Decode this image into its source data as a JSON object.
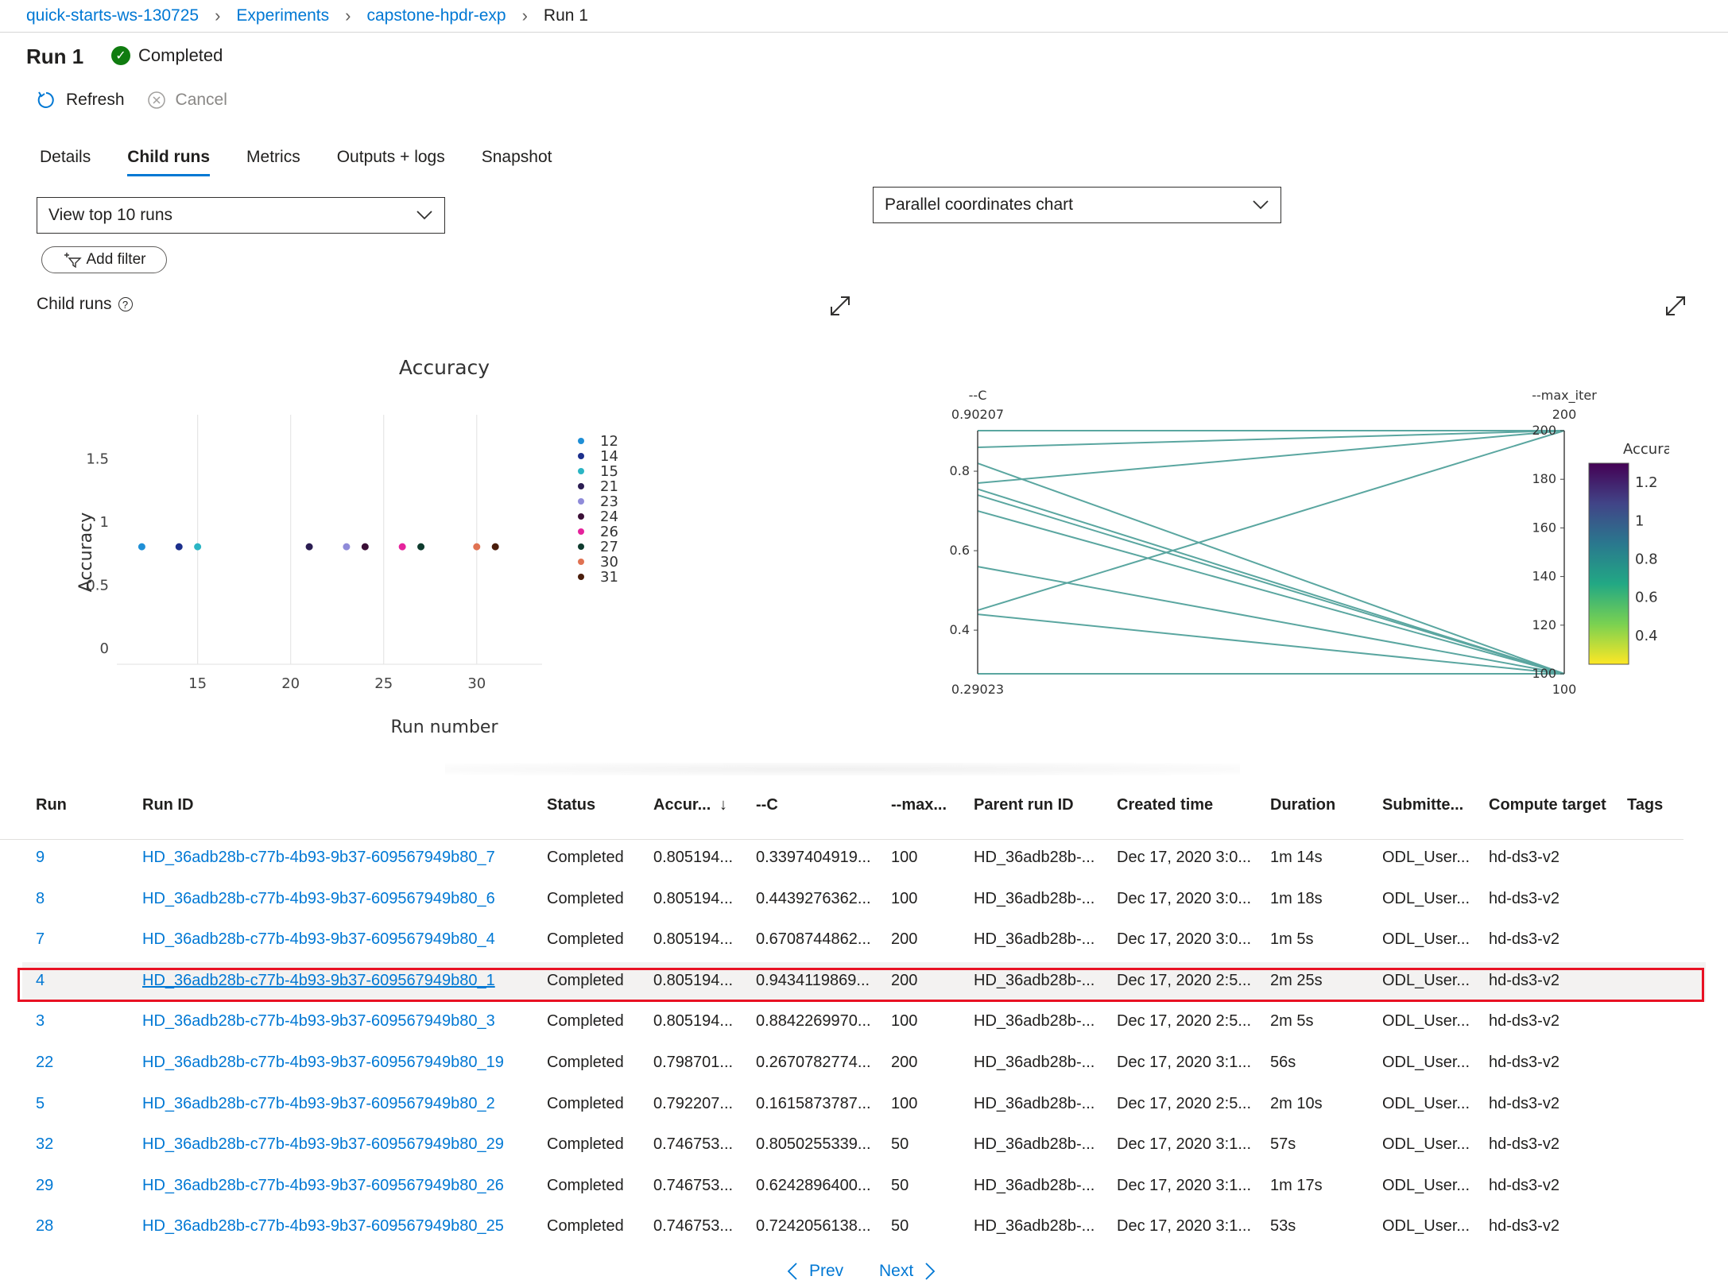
{
  "breadcrumb": {
    "items": [
      "quick-starts-ws-130725",
      "Experiments",
      "capstone-hpdr-exp",
      "Run 1"
    ]
  },
  "header": {
    "title": "Run 1",
    "status": "Completed",
    "status_color": "#107c10"
  },
  "toolbar": {
    "refresh_label": "Refresh",
    "cancel_label": "Cancel"
  },
  "tabs": [
    {
      "label": "Details",
      "active": false
    },
    {
      "label": "Child runs",
      "active": true
    },
    {
      "label": "Metrics",
      "active": false
    },
    {
      "label": "Outputs + logs",
      "active": false
    },
    {
      "label": "Snapshot",
      "active": false
    }
  ],
  "controls": {
    "view_dropdown": "View top 10 runs",
    "chart_dropdown": "Parallel coordinates chart",
    "add_filter": "Add filter",
    "child_runs_label": "Child runs",
    "help_icon": "?"
  },
  "chart_data": [
    {
      "type": "scatter",
      "title": "Accuracy",
      "xlabel": "Run number",
      "ylabel": "Accuracy",
      "xlim": [
        11,
        33
      ],
      "ylim": [
        -0.05,
        1.8
      ],
      "x_ticks": [
        "15",
        "20",
        "25",
        "30"
      ],
      "y_ticks": [
        "0",
        "0.5",
        "1",
        "1.5"
      ],
      "grid": "vertical",
      "legend": "right",
      "series": [
        {
          "name": "12",
          "x": 12,
          "y": 0.805,
          "color": "#1f8fd6"
        },
        {
          "name": "14",
          "x": 14,
          "y": 0.805,
          "color": "#1c2f8c"
        },
        {
          "name": "15",
          "x": 15,
          "y": 0.805,
          "color": "#2bb5c4"
        },
        {
          "name": "21",
          "x": 21,
          "y": 0.805,
          "color": "#2b1d52"
        },
        {
          "name": "23",
          "x": 23,
          "y": 0.805,
          "color": "#8f8bd9"
        },
        {
          "name": "24",
          "x": 24,
          "y": 0.805,
          "color": "#3a0f36"
        },
        {
          "name": "26",
          "x": 26,
          "y": 0.805,
          "color": "#e5239c"
        },
        {
          "name": "27",
          "x": 27,
          "y": 0.805,
          "color": "#0e3b2e"
        },
        {
          "name": "30",
          "x": 30,
          "y": 0.805,
          "color": "#e07252"
        },
        {
          "name": "31",
          "x": 31,
          "y": 0.805,
          "color": "#4a1e0c"
        }
      ]
    },
    {
      "type": "parallel-coordinates",
      "axes": [
        {
          "label": "--C",
          "min_label": "0.29023",
          "max_label": "0.90207",
          "ticks": [
            "0.4",
            "0.6",
            "0.8"
          ],
          "range": [
            0.29023,
            0.90207
          ]
        },
        {
          "label": "--max_iter",
          "min_label": "100",
          "max_label": "200",
          "ticks": [
            "100",
            "120",
            "140",
            "160",
            "180",
            "200"
          ],
          "range": [
            100,
            200
          ]
        }
      ],
      "lines": [
        {
          "c": 0.90207,
          "max_iter": 200
        },
        {
          "c": 0.86,
          "max_iter": 200
        },
        {
          "c": 0.77,
          "max_iter": 200
        },
        {
          "c": 0.45,
          "max_iter": 200
        },
        {
          "c": 0.82,
          "max_iter": 100
        },
        {
          "c": 0.755,
          "max_iter": 100
        },
        {
          "c": 0.74,
          "max_iter": 100
        },
        {
          "c": 0.7,
          "max_iter": 100
        },
        {
          "c": 0.56,
          "max_iter": 100
        },
        {
          "c": 0.44,
          "max_iter": 100
        },
        {
          "c": 0.29023,
          "max_iter": 100
        }
      ],
      "line_color": "#5aa6a0",
      "colorbar": {
        "title": "Accuracy",
        "ticks": [
          "0.4",
          "0.6",
          "0.8",
          "1",
          "1.2"
        ],
        "colors": [
          "#fde725",
          "#7ad151",
          "#22a884",
          "#2a788e",
          "#414487",
          "#440154"
        ]
      }
    }
  ],
  "table": {
    "columns": [
      "Run",
      "Run ID",
      "Status",
      "Accur...",
      "--C",
      "--max...",
      "Parent run ID",
      "Created time",
      "Duration",
      "Submitte...",
      "Compute target",
      "Tags"
    ],
    "sort_icon": "↓",
    "rows": [
      {
        "run": "9",
        "run_id": "HD_36adb28b-c77b-4b93-9b37-609567949b80_7",
        "status": "Completed",
        "accuracy": "0.805194...",
        "c": "0.3397404919...",
        "max_iter": "100",
        "parent": "HD_36adb28b-...",
        "created": "Dec 17, 2020 3:0...",
        "duration": "1m 14s",
        "submitted": "ODL_User...",
        "compute": "hd-ds3-v2",
        "tags": ""
      },
      {
        "run": "8",
        "run_id": "HD_36adb28b-c77b-4b93-9b37-609567949b80_6",
        "status": "Completed",
        "accuracy": "0.805194...",
        "c": "0.4439276362...",
        "max_iter": "100",
        "parent": "HD_36adb28b-...",
        "created": "Dec 17, 2020 3:0...",
        "duration": "1m 18s",
        "submitted": "ODL_User...",
        "compute": "hd-ds3-v2",
        "tags": ""
      },
      {
        "run": "7",
        "run_id": "HD_36adb28b-c77b-4b93-9b37-609567949b80_4",
        "status": "Completed",
        "accuracy": "0.805194...",
        "c": "0.6708744862...",
        "max_iter": "200",
        "parent": "HD_36adb28b-...",
        "created": "Dec 17, 2020 3:0...",
        "duration": "1m 5s",
        "submitted": "ODL_User...",
        "compute": "hd-ds3-v2",
        "tags": ""
      },
      {
        "run": "4",
        "run_id": "HD_36adb28b-c77b-4b93-9b37-609567949b80_1",
        "status": "Completed",
        "accuracy": "0.805194...",
        "c": "0.9434119869...",
        "max_iter": "200",
        "parent": "HD_36adb28b-...",
        "created": "Dec 17, 2020 2:5...",
        "duration": "2m 25s",
        "submitted": "ODL_User...",
        "compute": "hd-ds3-v2",
        "tags": "",
        "highlight": true
      },
      {
        "run": "3",
        "run_id": "HD_36adb28b-c77b-4b93-9b37-609567949b80_3",
        "status": "Completed",
        "accuracy": "0.805194...",
        "c": "0.8842269970...",
        "max_iter": "100",
        "parent": "HD_36adb28b-...",
        "created": "Dec 17, 2020 2:5...",
        "duration": "2m 5s",
        "submitted": "ODL_User...",
        "compute": "hd-ds3-v2",
        "tags": ""
      },
      {
        "run": "22",
        "run_id": "HD_36adb28b-c77b-4b93-9b37-609567949b80_19",
        "status": "Completed",
        "accuracy": "0.798701...",
        "c": "0.2670782774...",
        "max_iter": "200",
        "parent": "HD_36adb28b-...",
        "created": "Dec 17, 2020 3:1...",
        "duration": "56s",
        "submitted": "ODL_User...",
        "compute": "hd-ds3-v2",
        "tags": ""
      },
      {
        "run": "5",
        "run_id": "HD_36adb28b-c77b-4b93-9b37-609567949b80_2",
        "status": "Completed",
        "accuracy": "0.792207...",
        "c": "0.1615873787...",
        "max_iter": "100",
        "parent": "HD_36adb28b-...",
        "created": "Dec 17, 2020 2:5...",
        "duration": "2m 10s",
        "submitted": "ODL_User...",
        "compute": "hd-ds3-v2",
        "tags": ""
      },
      {
        "run": "32",
        "run_id": "HD_36adb28b-c77b-4b93-9b37-609567949b80_29",
        "status": "Completed",
        "accuracy": "0.746753...",
        "c": "0.8050255339...",
        "max_iter": "50",
        "parent": "HD_36adb28b-...",
        "created": "Dec 17, 2020 3:1...",
        "duration": "57s",
        "submitted": "ODL_User...",
        "compute": "hd-ds3-v2",
        "tags": ""
      },
      {
        "run": "29",
        "run_id": "HD_36adb28b-c77b-4b93-9b37-609567949b80_26",
        "status": "Completed",
        "accuracy": "0.746753...",
        "c": "0.6242896400...",
        "max_iter": "50",
        "parent": "HD_36adb28b-...",
        "created": "Dec 17, 2020 3:1...",
        "duration": "1m 17s",
        "submitted": "ODL_User...",
        "compute": "hd-ds3-v2",
        "tags": ""
      },
      {
        "run": "28",
        "run_id": "HD_36adb28b-c77b-4b93-9b37-609567949b80_25",
        "status": "Completed",
        "accuracy": "0.746753...",
        "c": "0.7242056138...",
        "max_iter": "50",
        "parent": "HD_36adb28b-...",
        "created": "Dec 17, 2020 3:1...",
        "duration": "53s",
        "submitted": "ODL_User...",
        "compute": "hd-ds3-v2",
        "tags": ""
      }
    ]
  },
  "pagination": {
    "prev_label": "Prev",
    "next_label": "Next"
  }
}
